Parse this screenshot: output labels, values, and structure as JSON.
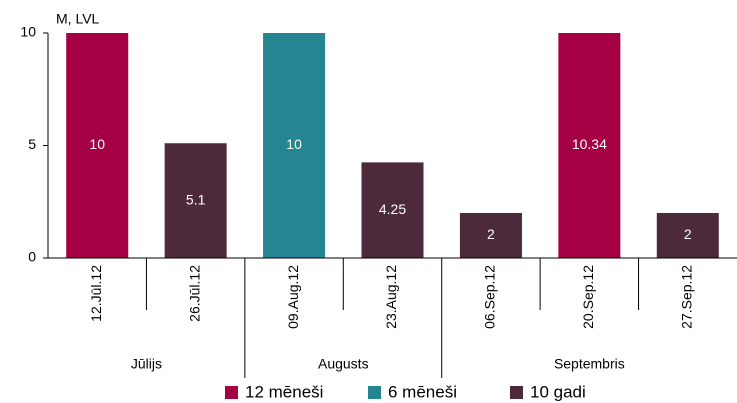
{
  "chart_data": {
    "type": "bar",
    "ylabel": "M, LVL",
    "groups": [
      {
        "name": "Jūlijs",
        "categories": [
          "12.Jūl.12",
          "26.Jūl.12"
        ]
      },
      {
        "name": "Augusts",
        "categories": [
          "09.Aug.12",
          "23.Aug.12"
        ]
      },
      {
        "name": "Septembris",
        "categories": [
          "06.Sep.12",
          "20.Sep.12",
          "27.Sep.12"
        ]
      }
    ],
    "series": [
      {
        "name": "12 mēneši",
        "color": "#a50044",
        "values": [
          10,
          null,
          null,
          null,
          null,
          10.34,
          null
        ]
      },
      {
        "name": "6 mēneši",
        "color": "#268593",
        "values": [
          null,
          null,
          10,
          null,
          null,
          null,
          null
        ]
      },
      {
        "name": "10 gadi",
        "color": "#4d2a3b",
        "values": [
          null,
          5.1,
          null,
          4.25,
          2,
          null,
          2
        ]
      }
    ],
    "ylim": [
      0,
      10
    ],
    "yticks": [
      0,
      5,
      10
    ],
    "grid": false
  }
}
